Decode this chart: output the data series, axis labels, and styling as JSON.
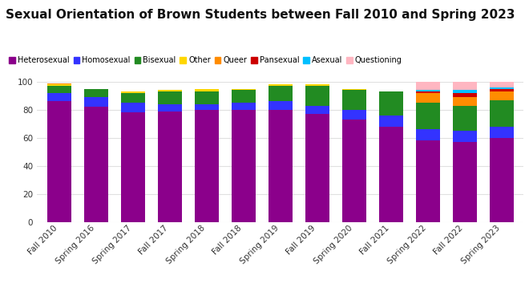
{
  "title": "Sexual Orientation of Brown Students between Fall 2010 and Spring 2023",
  "categories": [
    "Fall 2010",
    "Spring 2016",
    "Spring 2017",
    "Fall 2017",
    "Spring 2018",
    "Fall 2018",
    "Spring 2019",
    "Fall 2019",
    "Spring 2020",
    "Fall 2021",
    "Spring 2022",
    "Fall 2022",
    "Spring 2023"
  ],
  "series": {
    "Heterosexual": [
      86,
      82,
      78,
      79,
      80,
      80,
      80,
      77,
      73,
      68,
      58,
      57,
      60
    ],
    "Homosexual": [
      6,
      7,
      7,
      5,
      4,
      5,
      6,
      6,
      7,
      8,
      8,
      8,
      8
    ],
    "Bisexual": [
      5,
      6,
      7,
      9,
      9,
      9,
      11,
      14,
      14,
      17,
      19,
      18,
      19
    ],
    "Other": [
      1,
      0,
      1,
      1,
      2,
      1,
      1,
      1,
      1,
      0,
      0,
      0,
      0
    ],
    "Queer": [
      1,
      0,
      0,
      0,
      0,
      0,
      0,
      0,
      0,
      0,
      7,
      6,
      6
    ],
    "Pansexual": [
      0,
      0,
      0,
      0,
      0,
      0,
      0,
      0,
      0,
      0,
      1,
      3,
      2
    ],
    "Asexual": [
      0,
      0,
      0,
      0,
      0,
      0,
      0,
      0,
      0,
      0,
      1,
      2,
      1
    ],
    "Questioning": [
      0,
      0,
      0,
      0,
      0,
      0,
      0,
      0,
      0,
      0,
      6,
      6,
      4
    ]
  },
  "colors": {
    "Heterosexual": "#8B008B",
    "Homosexual": "#3333FF",
    "Bisexual": "#228B22",
    "Other": "#FFD700",
    "Queer": "#FF8C00",
    "Pansexual": "#CC0000",
    "Asexual": "#00BFFF",
    "Questioning": "#FFB6C1"
  },
  "ylim": [
    0,
    100
  ],
  "background_color": "#ffffff",
  "plot_bg_color": "#ffffff",
  "grid_color": "#e0e0e0",
  "legend_order": [
    "Heterosexual",
    "Homosexual",
    "Bisexual",
    "Other",
    "Queer",
    "Pansexual",
    "Asexual",
    "Questioning"
  ],
  "title_fontsize": 11,
  "legend_fontsize": 7,
  "tick_fontsize": 7.5
}
